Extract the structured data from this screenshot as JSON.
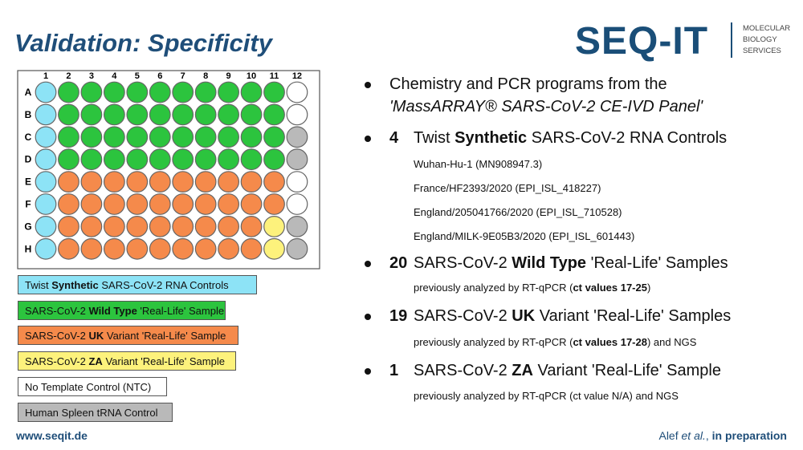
{
  "header": {
    "title": "Validation: Specificity",
    "logo": "SEQ-IT",
    "logo_tagline": [
      "MOLECULAR",
      "BIOLOGY",
      "SERVICES"
    ]
  },
  "plate": {
    "columns": [
      1,
      2,
      3,
      4,
      5,
      6,
      7,
      8,
      9,
      10,
      11,
      12
    ],
    "rows": [
      "A",
      "B",
      "C",
      "D",
      "E",
      "F",
      "G",
      "H"
    ],
    "wells": [
      [
        "#8de3f6",
        "#2cc43e",
        "#2cc43e",
        "#2cc43e",
        "#2cc43e",
        "#2cc43e",
        "#2cc43e",
        "#2cc43e",
        "#2cc43e",
        "#2cc43e",
        "#2cc43e",
        "#ffffff"
      ],
      [
        "#8de3f6",
        "#2cc43e",
        "#2cc43e",
        "#2cc43e",
        "#2cc43e",
        "#2cc43e",
        "#2cc43e",
        "#2cc43e",
        "#2cc43e",
        "#2cc43e",
        "#2cc43e",
        "#ffffff"
      ],
      [
        "#8de3f6",
        "#2cc43e",
        "#2cc43e",
        "#2cc43e",
        "#2cc43e",
        "#2cc43e",
        "#2cc43e",
        "#2cc43e",
        "#2cc43e",
        "#2cc43e",
        "#2cc43e",
        "#b9b9b9"
      ],
      [
        "#8de3f6",
        "#2cc43e",
        "#2cc43e",
        "#2cc43e",
        "#2cc43e",
        "#2cc43e",
        "#2cc43e",
        "#2cc43e",
        "#2cc43e",
        "#2cc43e",
        "#2cc43e",
        "#b9b9b9"
      ],
      [
        "#8de3f6",
        "#f58a4b",
        "#f58a4b",
        "#f58a4b",
        "#f58a4b",
        "#f58a4b",
        "#f58a4b",
        "#f58a4b",
        "#f58a4b",
        "#f58a4b",
        "#f58a4b",
        "#ffffff"
      ],
      [
        "#8de3f6",
        "#f58a4b",
        "#f58a4b",
        "#f58a4b",
        "#f58a4b",
        "#f58a4b",
        "#f58a4b",
        "#f58a4b",
        "#f58a4b",
        "#f58a4b",
        "#f58a4b",
        "#ffffff"
      ],
      [
        "#8de3f6",
        "#f58a4b",
        "#f58a4b",
        "#f58a4b",
        "#f58a4b",
        "#f58a4b",
        "#f58a4b",
        "#f58a4b",
        "#f58a4b",
        "#f58a4b",
        "#fdf27c",
        "#b9b9b9"
      ],
      [
        "#8de3f6",
        "#f58a4b",
        "#f58a4b",
        "#f58a4b",
        "#f58a4b",
        "#f58a4b",
        "#f58a4b",
        "#f58a4b",
        "#f58a4b",
        "#f58a4b",
        "#fdf27c",
        "#b9b9b9"
      ]
    ]
  },
  "legend": [
    {
      "parts": [
        "Twist ",
        "Synthetic",
        " SARS-CoV-2 RNA Controls"
      ],
      "bold": [
        1
      ],
      "color": "#8de3f6"
    },
    {
      "parts": [
        "SARS-CoV-2 ",
        "Wild Type",
        " 'Real-Life' Sample"
      ],
      "bold": [
        1
      ],
      "color": "#2cc43e"
    },
    {
      "parts": [
        "SARS-CoV-2 ",
        "UK",
        " Variant 'Real-Life' Sample"
      ],
      "bold": [
        1
      ],
      "color": "#f58a4b"
    },
    {
      "parts": [
        "SARS-CoV-2 ",
        "ZA",
        " Variant 'Real-Life' Sample"
      ],
      "bold": [
        1
      ],
      "color": "#fdf27c"
    },
    {
      "parts": [
        "No Template Control (NTC)"
      ],
      "color": "#ffffff"
    },
    {
      "parts": [
        "Human Spleen tRNA Control"
      ],
      "color": "#b9b9b9"
    }
  ],
  "bullets": [
    {
      "lines": [
        {
          "parts": [
            "Chemistry and PCR programs from the"
          ]
        },
        {
          "parts": [
            "'MassARRAY® SARS-CoV-2 CE-IVD Panel'"
          ],
          "italic": [
            0
          ]
        }
      ]
    },
    {
      "count": 4,
      "lines": [
        {
          "parts": [
            "Twist ",
            "Synthetic",
            " SARS-CoV-2 RNA Controls"
          ],
          "bold": [
            1
          ]
        }
      ],
      "details": [
        {
          "parts": [
            "Wuhan-Hu-1 (MN908947.3)"
          ]
        },
        {
          "parts": [
            "France/HF2393/2020 (EPI_ISL_418227)"
          ]
        },
        {
          "parts": [
            "England/205041766/2020 (EPI_ISL_710528)"
          ]
        },
        {
          "parts": [
            "England/MILK-9E05B3/2020 (EPI_ISL_601443)"
          ]
        }
      ]
    },
    {
      "count": 20,
      "lines": [
        {
          "parts": [
            "SARS-CoV-2 ",
            "Wild Type",
            " 'Real-Life' Samples"
          ],
          "bold": [
            1
          ]
        }
      ],
      "details": [
        {
          "parts": [
            "previously analyzed by RT-qPCR (",
            "ct values 17-25",
            ")"
          ],
          "bold": [
            1
          ]
        }
      ]
    },
    {
      "count": 19,
      "lines": [
        {
          "parts": [
            "SARS-CoV-2 ",
            "UK",
            " Variant 'Real-Life' Samples"
          ],
          "bold": [
            1
          ]
        }
      ],
      "details": [
        {
          "parts": [
            "previously analyzed by RT-qPCR (",
            "ct values 17-28",
            ") and NGS"
          ],
          "bold": [
            1
          ]
        }
      ]
    },
    {
      "count": 1,
      "lines": [
        {
          "parts": [
            "SARS-CoV-2 ",
            "ZA",
            " Variant 'Real-Life' Sample"
          ],
          "bold": [
            1
          ]
        }
      ],
      "details": [
        {
          "parts": [
            "previously analyzed by RT-qPCR (ct value N/A) and NGS"
          ]
        }
      ]
    }
  ],
  "footer": {
    "website": "www.seqit.de",
    "citation": {
      "parts": [
        "Alef ",
        "et al.",
        ", ",
        "in preparation"
      ],
      "italic": [
        1
      ],
      "bold": [
        3
      ]
    }
  }
}
